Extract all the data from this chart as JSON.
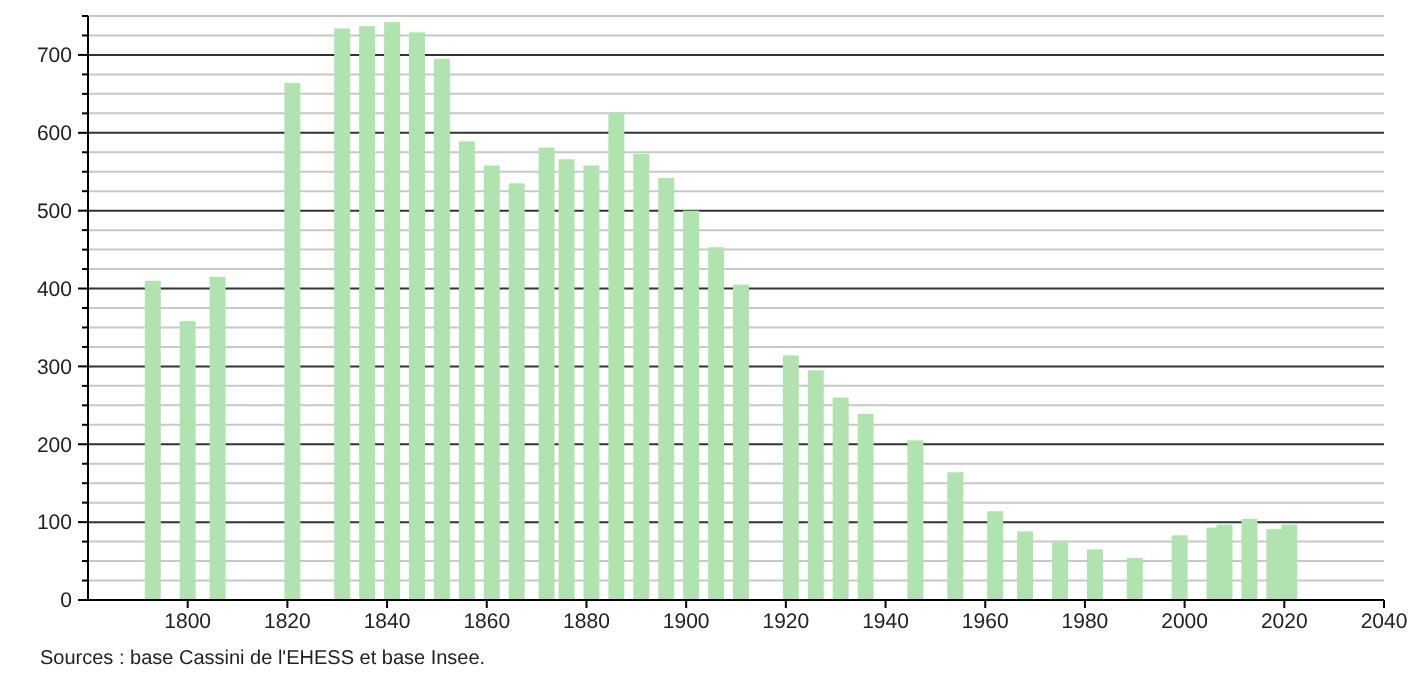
{
  "chart_data": {
    "type": "bar",
    "x": [
      1793,
      1800,
      1806,
      1821,
      1831,
      1836,
      1841,
      1846,
      1851,
      1856,
      1861,
      1866,
      1872,
      1876,
      1881,
      1886,
      1891,
      1896,
      1901,
      1906,
      1911,
      1921,
      1926,
      1931,
      1936,
      1946,
      1954,
      1962,
      1968,
      1975,
      1982,
      1990,
      1999,
      2006,
      2008,
      2013,
      2018,
      2021
    ],
    "values": [
      410,
      358,
      415,
      664,
      734,
      737,
      742,
      729,
      695,
      589,
      558,
      535,
      581,
      566,
      558,
      625,
      573,
      542,
      500,
      453,
      405,
      314,
      295,
      260,
      239,
      205,
      164,
      114,
      88,
      74,
      65,
      54,
      83,
      93,
      97,
      104,
      91,
      97
    ],
    "color": "#b0e3b0",
    "xlim": [
      1780,
      2040
    ],
    "xticks": [
      1800,
      1820,
      1840,
      1860,
      1880,
      1900,
      1920,
      1940,
      1960,
      1980,
      2000,
      2020,
      2040
    ],
    "ylim": [
      0,
      750
    ],
    "yticks": [
      0,
      {
        "value": 25,
        "label": null
      },
      {
        "value": 50,
        "label": null
      },
      {
        "value": 75,
        "label": null
      },
      100,
      {
        "value": 125,
        "label": null
      },
      {
        "value": 150,
        "label": null
      },
      {
        "value": 175,
        "label": null
      },
      200,
      {
        "value": 225,
        "label": null
      },
      {
        "value": 250,
        "label": null
      },
      {
        "value": 275,
        "label": null
      },
      300,
      {
        "value": 325,
        "label": null
      },
      {
        "value": 350,
        "label": null
      },
      {
        "value": 375,
        "label": null
      },
      400,
      {
        "value": 425,
        "label": null
      },
      {
        "value": 450,
        "label": null
      },
      {
        "value": 475,
        "label": null
      },
      500,
      {
        "value": 525,
        "label": null
      },
      {
        "value": 550,
        "label": null
      },
      {
        "value": 575,
        "label": null
      },
      600,
      {
        "value": 625,
        "label": null
      },
      {
        "value": 650,
        "label": null
      },
      {
        "value": 675,
        "label": null
      },
      700,
      {
        "value": 725,
        "label": null
      },
      {
        "value": 750,
        "label": null
      }
    ],
    "grid": true,
    "annotations": [
      "Sources : base Cassini de l'EHESS et base Insee."
    ]
  }
}
